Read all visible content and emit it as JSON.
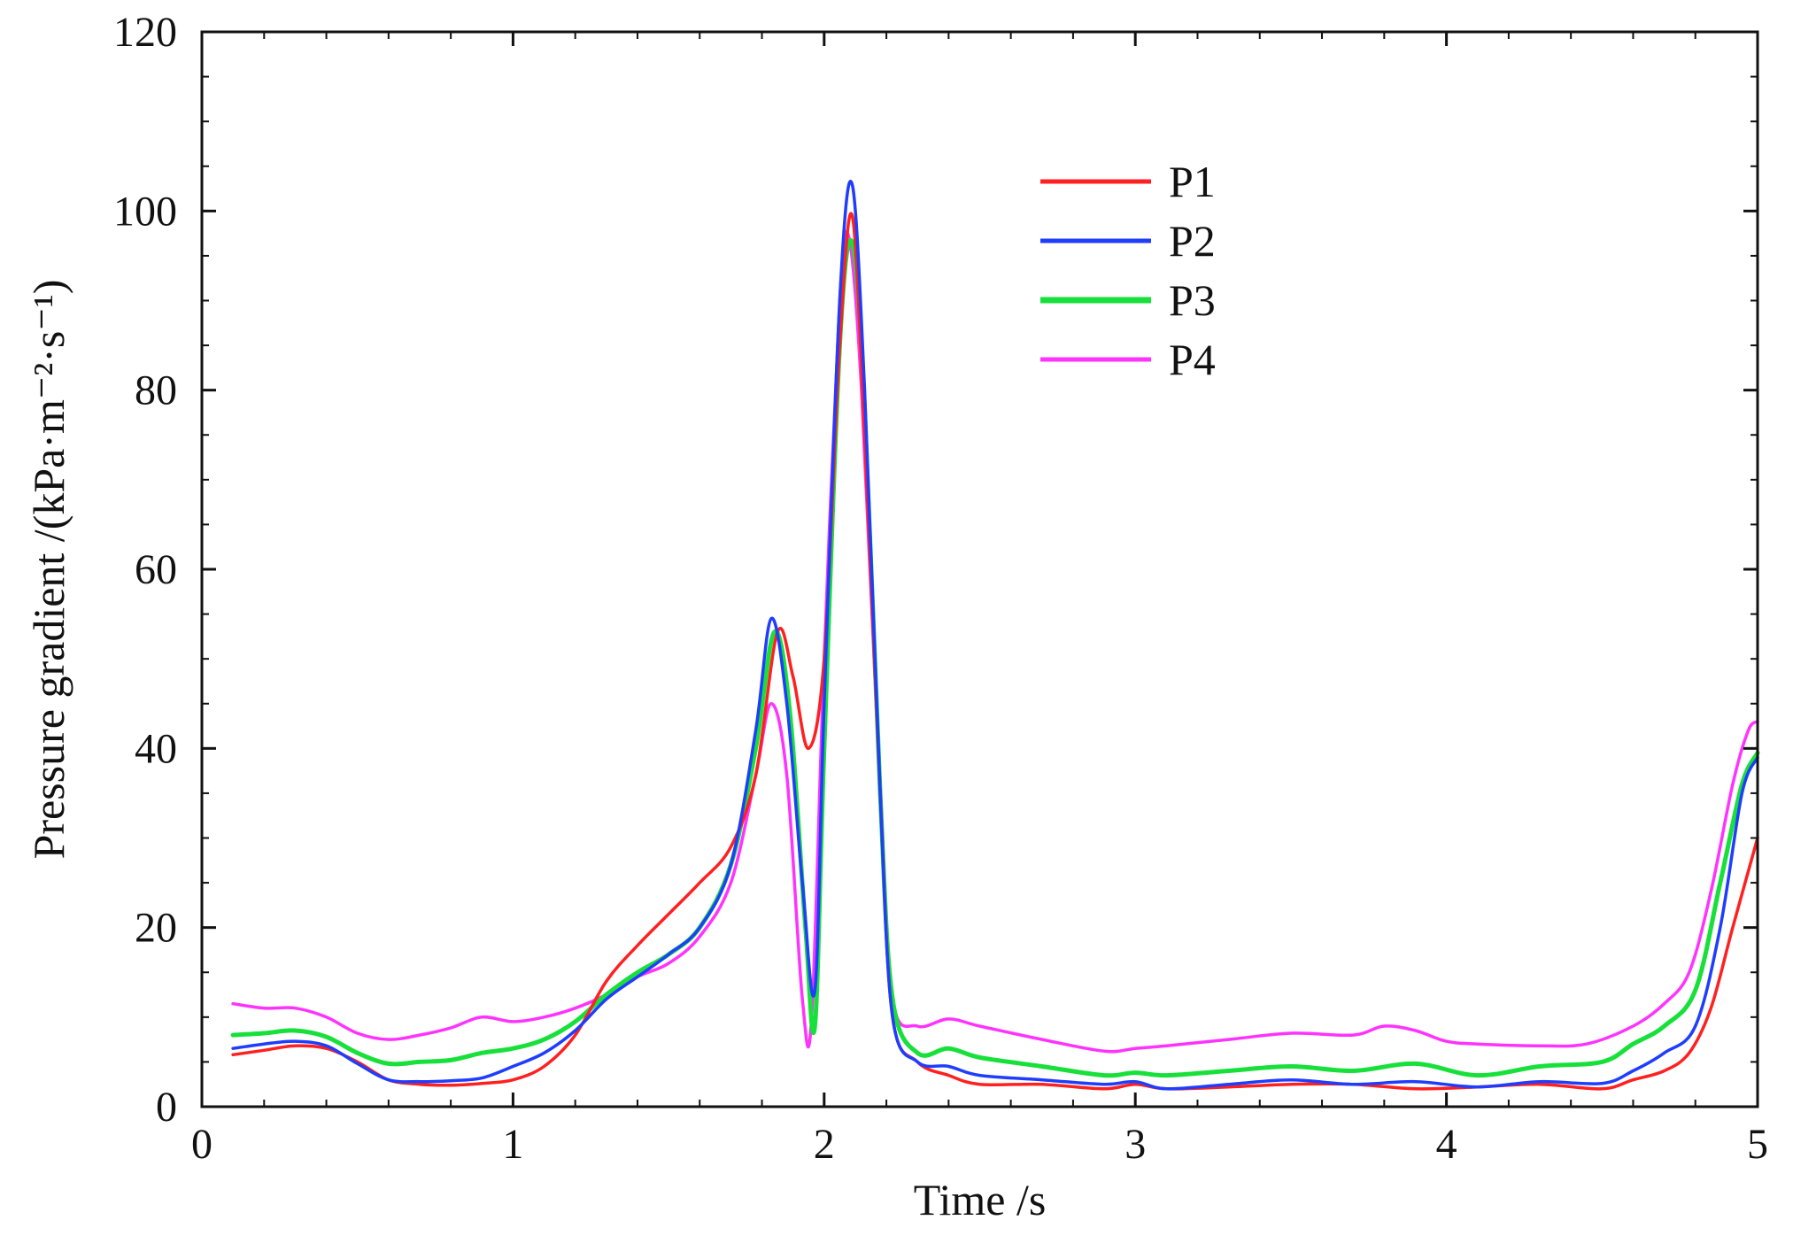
{
  "chart_data": {
    "type": "line",
    "title": "",
    "xlabel": "Time /s",
    "ylabel": "Pressure gradient /(kPa·m⁻²·s⁻¹)",
    "xlim": [
      0,
      5
    ],
    "ylim": [
      0,
      120
    ],
    "x_ticks": [
      "0",
      "1",
      "2",
      "3",
      "4",
      "5"
    ],
    "y_ticks": [
      "0",
      "20",
      "40",
      "60",
      "80",
      "100",
      "120"
    ],
    "grid": false,
    "legend": "top-center",
    "series": [
      {
        "name": "P1",
        "color": "#ff2020",
        "points": [
          [
            0.1,
            5.8
          ],
          [
            0.2,
            6.3
          ],
          [
            0.3,
            6.8
          ],
          [
            0.4,
            6.5
          ],
          [
            0.5,
            5.0
          ],
          [
            0.6,
            3.0
          ],
          [
            0.7,
            2.5
          ],
          [
            0.8,
            2.4
          ],
          [
            0.9,
            2.6
          ],
          [
            1.0,
            3.0
          ],
          [
            1.1,
            4.5
          ],
          [
            1.2,
            8.0
          ],
          [
            1.3,
            14.0
          ],
          [
            1.4,
            18.0
          ],
          [
            1.5,
            21.5
          ],
          [
            1.6,
            25.0
          ],
          [
            1.7,
            29.0
          ],
          [
            1.78,
            37.0
          ],
          [
            1.85,
            53.0
          ],
          [
            1.9,
            48.0
          ],
          [
            1.95,
            40.0
          ],
          [
            2.0,
            50.0
          ],
          [
            2.05,
            85.0
          ],
          [
            2.09,
            99.5
          ],
          [
            2.13,
            75.0
          ],
          [
            2.18,
            35.0
          ],
          [
            2.22,
            10.0
          ],
          [
            2.3,
            5.0
          ],
          [
            2.4,
            3.5
          ],
          [
            2.5,
            2.5
          ],
          [
            2.7,
            2.5
          ],
          [
            2.9,
            2.0
          ],
          [
            3.0,
            2.5
          ],
          [
            3.1,
            2.0
          ],
          [
            3.3,
            2.2
          ],
          [
            3.5,
            2.5
          ],
          [
            3.7,
            2.5
          ],
          [
            3.9,
            2.0
          ],
          [
            4.1,
            2.2
          ],
          [
            4.3,
            2.5
          ],
          [
            4.5,
            2.0
          ],
          [
            4.6,
            3.0
          ],
          [
            4.7,
            4.0
          ],
          [
            4.78,
            6.0
          ],
          [
            4.85,
            11.0
          ],
          [
            4.92,
            20.0
          ],
          [
            5.0,
            30.0
          ]
        ]
      },
      {
        "name": "P2",
        "color": "#1f3dff",
        "points": [
          [
            0.1,
            6.5
          ],
          [
            0.2,
            7.0
          ],
          [
            0.3,
            7.3
          ],
          [
            0.4,
            6.8
          ],
          [
            0.5,
            4.8
          ],
          [
            0.6,
            3.0
          ],
          [
            0.7,
            2.8
          ],
          [
            0.8,
            2.9
          ],
          [
            0.9,
            3.2
          ],
          [
            1.0,
            4.5
          ],
          [
            1.1,
            6.0
          ],
          [
            1.2,
            8.5
          ],
          [
            1.3,
            12.0
          ],
          [
            1.4,
            14.5
          ],
          [
            1.5,
            17.0
          ],
          [
            1.6,
            20.0
          ],
          [
            1.7,
            27.0
          ],
          [
            1.78,
            42.0
          ],
          [
            1.83,
            54.5
          ],
          [
            1.88,
            45.0
          ],
          [
            1.93,
            25.0
          ],
          [
            1.97,
            13.0
          ],
          [
            2.0,
            45.0
          ],
          [
            2.05,
            90.0
          ],
          [
            2.09,
            103.0
          ],
          [
            2.13,
            80.0
          ],
          [
            2.18,
            35.0
          ],
          [
            2.22,
            10.0
          ],
          [
            2.3,
            5.0
          ],
          [
            2.4,
            4.5
          ],
          [
            2.5,
            3.5
          ],
          [
            2.7,
            3.0
          ],
          [
            2.9,
            2.5
          ],
          [
            3.0,
            2.8
          ],
          [
            3.1,
            2.0
          ],
          [
            3.3,
            2.5
          ],
          [
            3.5,
            3.0
          ],
          [
            3.7,
            2.5
          ],
          [
            3.9,
            2.8
          ],
          [
            4.1,
            2.2
          ],
          [
            4.3,
            2.8
          ],
          [
            4.5,
            2.6
          ],
          [
            4.6,
            4.0
          ],
          [
            4.7,
            6.0
          ],
          [
            4.8,
            9.0
          ],
          [
            4.88,
            20.0
          ],
          [
            4.95,
            35.0
          ],
          [
            5.0,
            39.0
          ]
        ]
      },
      {
        "name": "P3",
        "color": "#18e03a",
        "points": [
          [
            0.1,
            8.0
          ],
          [
            0.2,
            8.2
          ],
          [
            0.3,
            8.5
          ],
          [
            0.4,
            7.8
          ],
          [
            0.5,
            6.0
          ],
          [
            0.6,
            4.8
          ],
          [
            0.7,
            5.0
          ],
          [
            0.8,
            5.2
          ],
          [
            0.9,
            6.0
          ],
          [
            1.0,
            6.5
          ],
          [
            1.1,
            7.5
          ],
          [
            1.2,
            9.5
          ],
          [
            1.3,
            12.5
          ],
          [
            1.4,
            15.0
          ],
          [
            1.5,
            17.0
          ],
          [
            1.6,
            20.0
          ],
          [
            1.7,
            27.0
          ],
          [
            1.78,
            40.0
          ],
          [
            1.84,
            53.0
          ],
          [
            1.89,
            44.0
          ],
          [
            1.94,
            20.0
          ],
          [
            1.97,
            9.0
          ],
          [
            2.0,
            40.0
          ],
          [
            2.05,
            85.0
          ],
          [
            2.09,
            96.5
          ],
          [
            2.13,
            78.0
          ],
          [
            2.18,
            35.0
          ],
          [
            2.22,
            12.0
          ],
          [
            2.3,
            6.0
          ],
          [
            2.4,
            6.5
          ],
          [
            2.5,
            5.5
          ],
          [
            2.7,
            4.5
          ],
          [
            2.9,
            3.5
          ],
          [
            3.0,
            3.8
          ],
          [
            3.1,
            3.5
          ],
          [
            3.3,
            4.0
          ],
          [
            3.5,
            4.5
          ],
          [
            3.7,
            4.0
          ],
          [
            3.9,
            4.8
          ],
          [
            4.1,
            3.5
          ],
          [
            4.3,
            4.5
          ],
          [
            4.5,
            5.0
          ],
          [
            4.6,
            7.0
          ],
          [
            4.7,
            9.0
          ],
          [
            4.8,
            13.0
          ],
          [
            4.88,
            25.0
          ],
          [
            4.95,
            36.0
          ],
          [
            5.0,
            39.5
          ]
        ]
      },
      {
        "name": "P4",
        "color": "#ff33ff",
        "points": [
          [
            0.1,
            11.5
          ],
          [
            0.2,
            11.0
          ],
          [
            0.3,
            11.0
          ],
          [
            0.4,
            10.0
          ],
          [
            0.5,
            8.2
          ],
          [
            0.6,
            7.5
          ],
          [
            0.7,
            8.0
          ],
          [
            0.8,
            8.8
          ],
          [
            0.9,
            10.0
          ],
          [
            1.0,
            9.5
          ],
          [
            1.1,
            10.0
          ],
          [
            1.2,
            11.0
          ],
          [
            1.3,
            12.5
          ],
          [
            1.4,
            14.5
          ],
          [
            1.5,
            16.0
          ],
          [
            1.6,
            19.0
          ],
          [
            1.7,
            25.0
          ],
          [
            1.78,
            37.0
          ],
          [
            1.83,
            45.0
          ],
          [
            1.88,
            37.0
          ],
          [
            1.93,
            12.0
          ],
          [
            1.96,
            10.0
          ],
          [
            2.0,
            50.0
          ],
          [
            2.05,
            90.0
          ],
          [
            2.08,
            97.0
          ],
          [
            2.12,
            80.0
          ],
          [
            2.18,
            35.0
          ],
          [
            2.22,
            12.0
          ],
          [
            2.3,
            9.0
          ],
          [
            2.4,
            9.8
          ],
          [
            2.5,
            9.0
          ],
          [
            2.7,
            7.5
          ],
          [
            2.9,
            6.2
          ],
          [
            3.0,
            6.5
          ],
          [
            3.1,
            6.8
          ],
          [
            3.3,
            7.5
          ],
          [
            3.5,
            8.2
          ],
          [
            3.7,
            8.0
          ],
          [
            3.8,
            9.0
          ],
          [
            3.9,
            8.5
          ],
          [
            4.0,
            7.3
          ],
          [
            4.1,
            7.0
          ],
          [
            4.3,
            6.8
          ],
          [
            4.45,
            7.0
          ],
          [
            4.6,
            9.0
          ],
          [
            4.7,
            11.5
          ],
          [
            4.78,
            15.0
          ],
          [
            4.85,
            24.0
          ],
          [
            4.92,
            36.0
          ],
          [
            4.97,
            42.0
          ],
          [
            5.0,
            43.0
          ]
        ]
      }
    ]
  }
}
